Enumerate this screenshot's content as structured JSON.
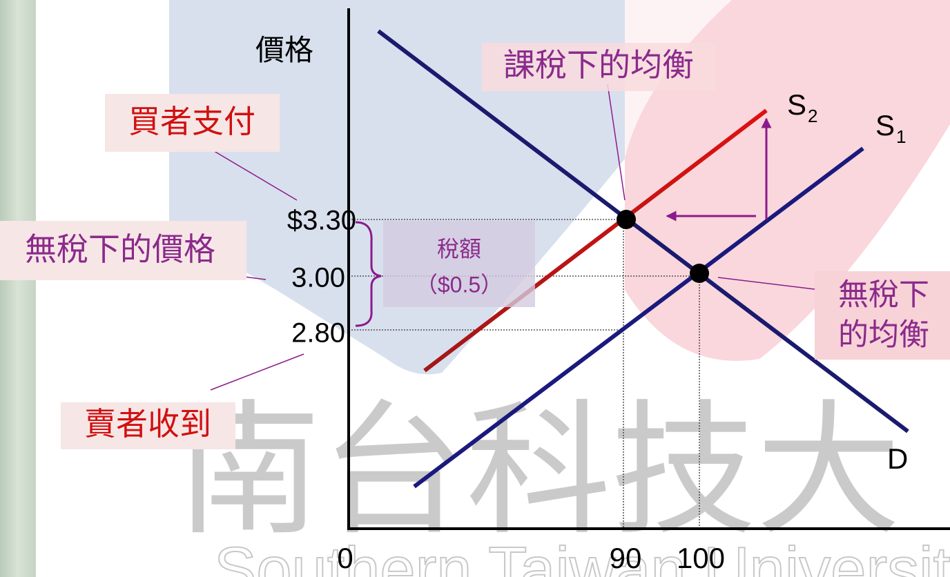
{
  "axis": {
    "y_label": "價格",
    "x_ticks": [
      "0",
      "90",
      "100"
    ],
    "y_ticks": [
      "$3.30",
      "3.00",
      "2.80"
    ]
  },
  "curves": {
    "demand": "D",
    "supply_1": {
      "letter": "S",
      "sub": "1"
    },
    "supply_2": {
      "letter": "S",
      "sub": "2"
    }
  },
  "callouts": {
    "taxed_equilibrium": "課稅下的均衡",
    "buyers_pay": "買者支付",
    "price_without_tax": "無稅下的價格",
    "sellers_receive": "賣者收到",
    "untaxed_equilibrium": [
      "無稅下",
      "的均衡"
    ]
  },
  "tax": {
    "title": "稅額",
    "amount": "（$0.5）"
  },
  "watermark": {
    "calligraphy": "南台科技大",
    "english": "Southern Taiwan University"
  }
}
